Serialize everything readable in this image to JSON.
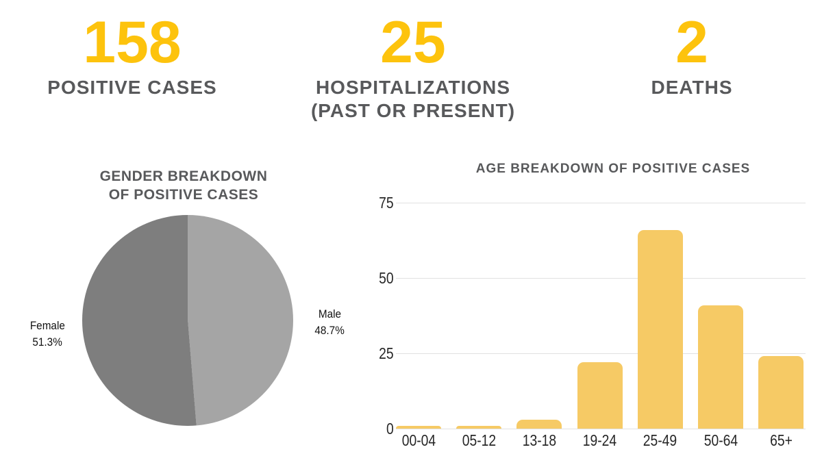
{
  "stats": [
    {
      "value": "158",
      "label": "POSITIVE CASES",
      "sublabel": ""
    },
    {
      "value": "25",
      "label": "HOSPITALIZATIONS",
      "sublabel": "(PAST OR PRESENT)"
    },
    {
      "value": "2",
      "label": "DEATHS",
      "sublabel": ""
    }
  ],
  "colors": {
    "stat_number": "#fdc30d",
    "heading_text": "#58595b",
    "bar_fill": "#f6ca65",
    "pie_female": "#7e7e7e",
    "pie_male": "#a5a5a5",
    "gridline": "#e1e1e1",
    "axis_text": "#262626"
  },
  "chart_data": [
    {
      "type": "pie",
      "title": "GENDER BREAKDOWN OF POSITIVE CASES",
      "labels": [
        "Female",
        "Male"
      ],
      "values": [
        51.3,
        48.7
      ],
      "value_labels": [
        "51.3%",
        "48.7%"
      ],
      "colors": [
        "#7e7e7e",
        "#a5a5a5"
      ],
      "start_angle_deg": 0,
      "first_slice_clockwise": "Male",
      "legend_position": "outside-left-right"
    },
    {
      "type": "bar",
      "title": "AGE BREAKDOWN OF POSITIVE CASES",
      "categories": [
        "00-04",
        "05-12",
        "13-18",
        "19-24",
        "25-49",
        "50-64",
        "65+"
      ],
      "values": [
        1,
        1,
        3,
        22,
        66,
        41,
        24
      ],
      "xlabel": "",
      "ylabel": "",
      "ylim": [
        0,
        75
      ],
      "yticks": [
        0,
        25,
        50,
        75
      ],
      "grid": true,
      "bar_color": "#f6ca65"
    }
  ]
}
